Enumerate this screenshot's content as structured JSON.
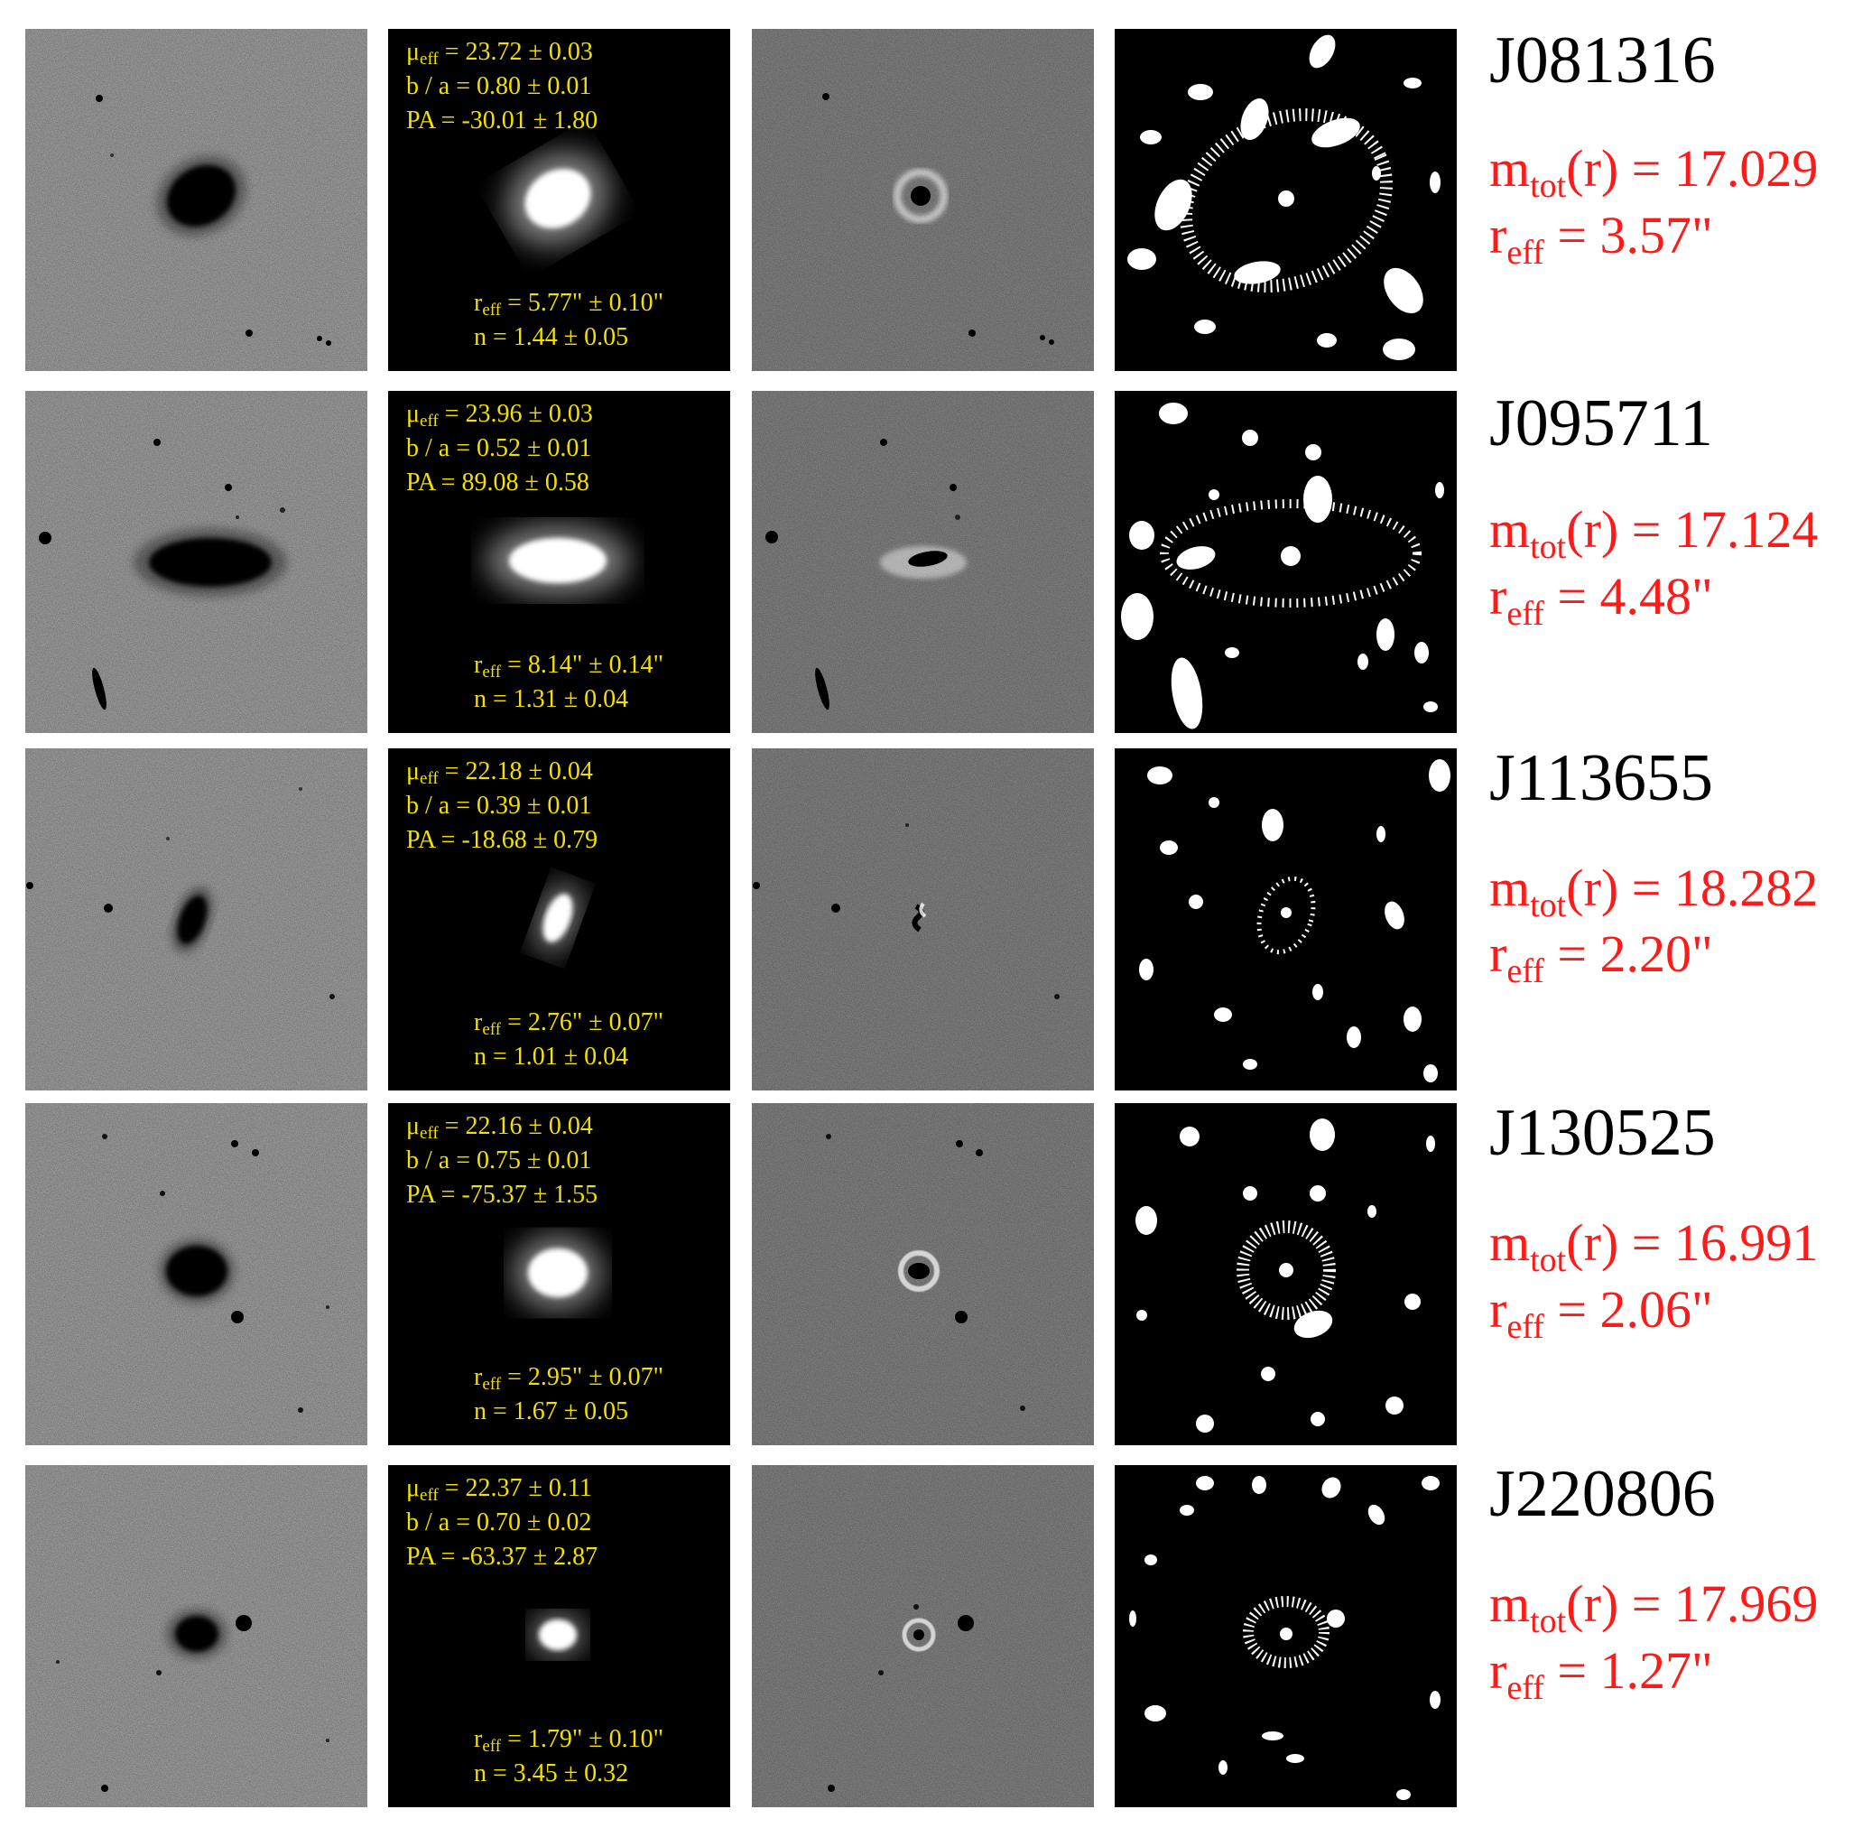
{
  "colors": {
    "fit_text": "#f2e000",
    "photometry_text": "#ff1a1a",
    "name_text": "#000000"
  },
  "rows": [
    {
      "name": "J081316",
      "mu_eff": "= 23.72 ± 0.03",
      "ba": "b / a = 0.80 ± 0.01",
      "pa": "PA = -30.01 ± 1.80",
      "r_eff_fit": "=  5.77\" ± 0.10\"",
      "n": "n = 1.44 ± 0.05",
      "m_tot": "(r) = 17.029",
      "r_eff": "= 3.57\""
    },
    {
      "name": "J095711",
      "mu_eff": "= 23.96 ± 0.03",
      "ba": "b / a = 0.52 ± 0.01",
      "pa": "PA = 89.08 ± 0.58",
      "r_eff_fit": "=  8.14\" ± 0.14\"",
      "n": "n = 1.31 ± 0.04",
      "m_tot": "(r) = 17.124",
      "r_eff": "= 4.48\""
    },
    {
      "name": "J113655",
      "mu_eff": "= 22.18 ± 0.04",
      "ba": "b / a = 0.39 ± 0.01",
      "pa": "PA = -18.68 ± 0.79",
      "r_eff_fit": "=  2.76\" ± 0.07\"",
      "n": "n = 1.01 ± 0.04",
      "m_tot": "(r) = 18.282",
      "r_eff": "= 2.20\""
    },
    {
      "name": "J130525",
      "mu_eff": "= 22.16 ± 0.04",
      "ba": "b / a = 0.75 ± 0.01",
      "pa": "PA = -75.37 ± 1.55",
      "r_eff_fit": "=  2.95\" ± 0.07\"",
      "n": "n = 1.67 ± 0.05",
      "m_tot": "(r) = 16.991",
      "r_eff": "= 2.06\""
    },
    {
      "name": "J220806",
      "mu_eff": "= 22.37 ± 0.11",
      "ba": "b / a = 0.70 ± 0.02",
      "pa": "PA = -63.37 ± 2.87",
      "r_eff_fit": "=  1.79\" ± 0.10\"",
      "n": "n = 3.45 ± 0.32",
      "m_tot": "(r) = 17.969",
      "r_eff": "= 1.27\""
    }
  ]
}
